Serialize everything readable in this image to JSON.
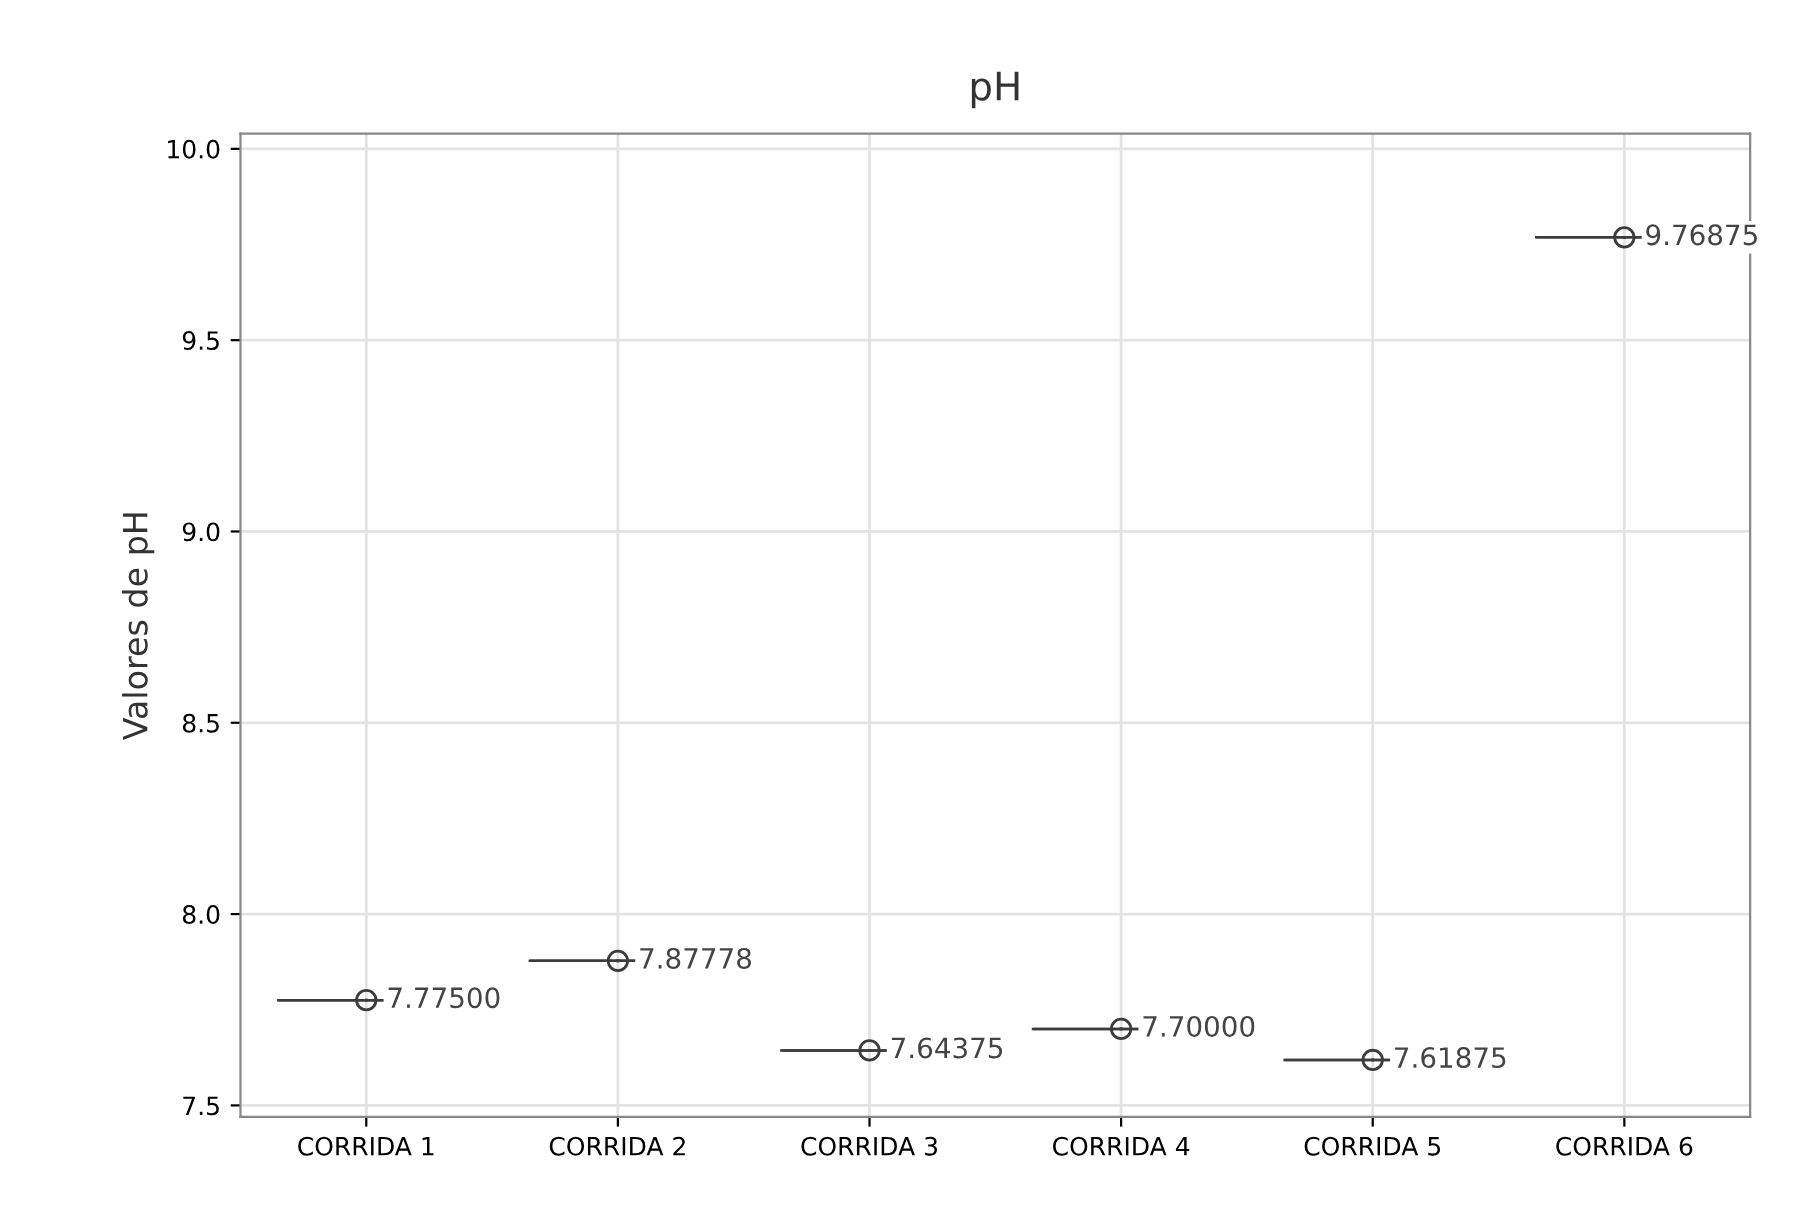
{
  "chart_data": {
    "type": "box",
    "title": "pH",
    "ylabel": "Valores de pH",
    "categories": [
      "CORRIDA 1",
      "CORRIDA 2",
      "CORRIDA 3",
      "CORRIDA 4",
      "CORRIDA 5",
      "CORRIDA 6"
    ],
    "boxes": [
      {
        "low": 7.775,
        "q1": 7.775,
        "median": 7.775,
        "q3": 7.775,
        "high": 7.775,
        "mean": 7.775
      },
      {
        "low": 7.87778,
        "q1": 7.87778,
        "median": 7.87778,
        "q3": 7.87778,
        "high": 7.87778,
        "mean": 7.87778
      },
      {
        "low": 7.64375,
        "q1": 7.64375,
        "median": 7.64375,
        "q3": 7.64375,
        "high": 7.64375,
        "mean": 7.64375
      },
      {
        "low": 7.7,
        "q1": 7.7,
        "median": 7.7,
        "q3": 7.7,
        "high": 7.7,
        "mean": 7.7
      },
      {
        "low": 7.61875,
        "q1": 7.61875,
        "median": 7.61875,
        "q3": 7.61875,
        "high": 7.61875,
        "mean": 7.61875
      },
      {
        "low": 9.76875,
        "q1": 9.76875,
        "median": 9.76875,
        "q3": 9.76875,
        "high": 9.76875,
        "mean": 9.76875
      }
    ],
    "value_labels": [
      "7.77500",
      "7.87778",
      "7.64375",
      "7.70000",
      "7.61875",
      "9.76875"
    ],
    "color": "#3c3c3c",
    "marker": "circle",
    "ylim": [
      7.47,
      10.04
    ],
    "yticks": [
      {
        "value": 7.5,
        "label": "7.5"
      },
      {
        "value": 8,
        "label": "8.0"
      },
      {
        "value": 8.5,
        "label": "8.5"
      },
      {
        "value": 9,
        "label": "9.0"
      },
      {
        "value": 9.5,
        "label": "9.5"
      },
      {
        "value": 10,
        "label": "10.0"
      }
    ],
    "grid": true
  }
}
